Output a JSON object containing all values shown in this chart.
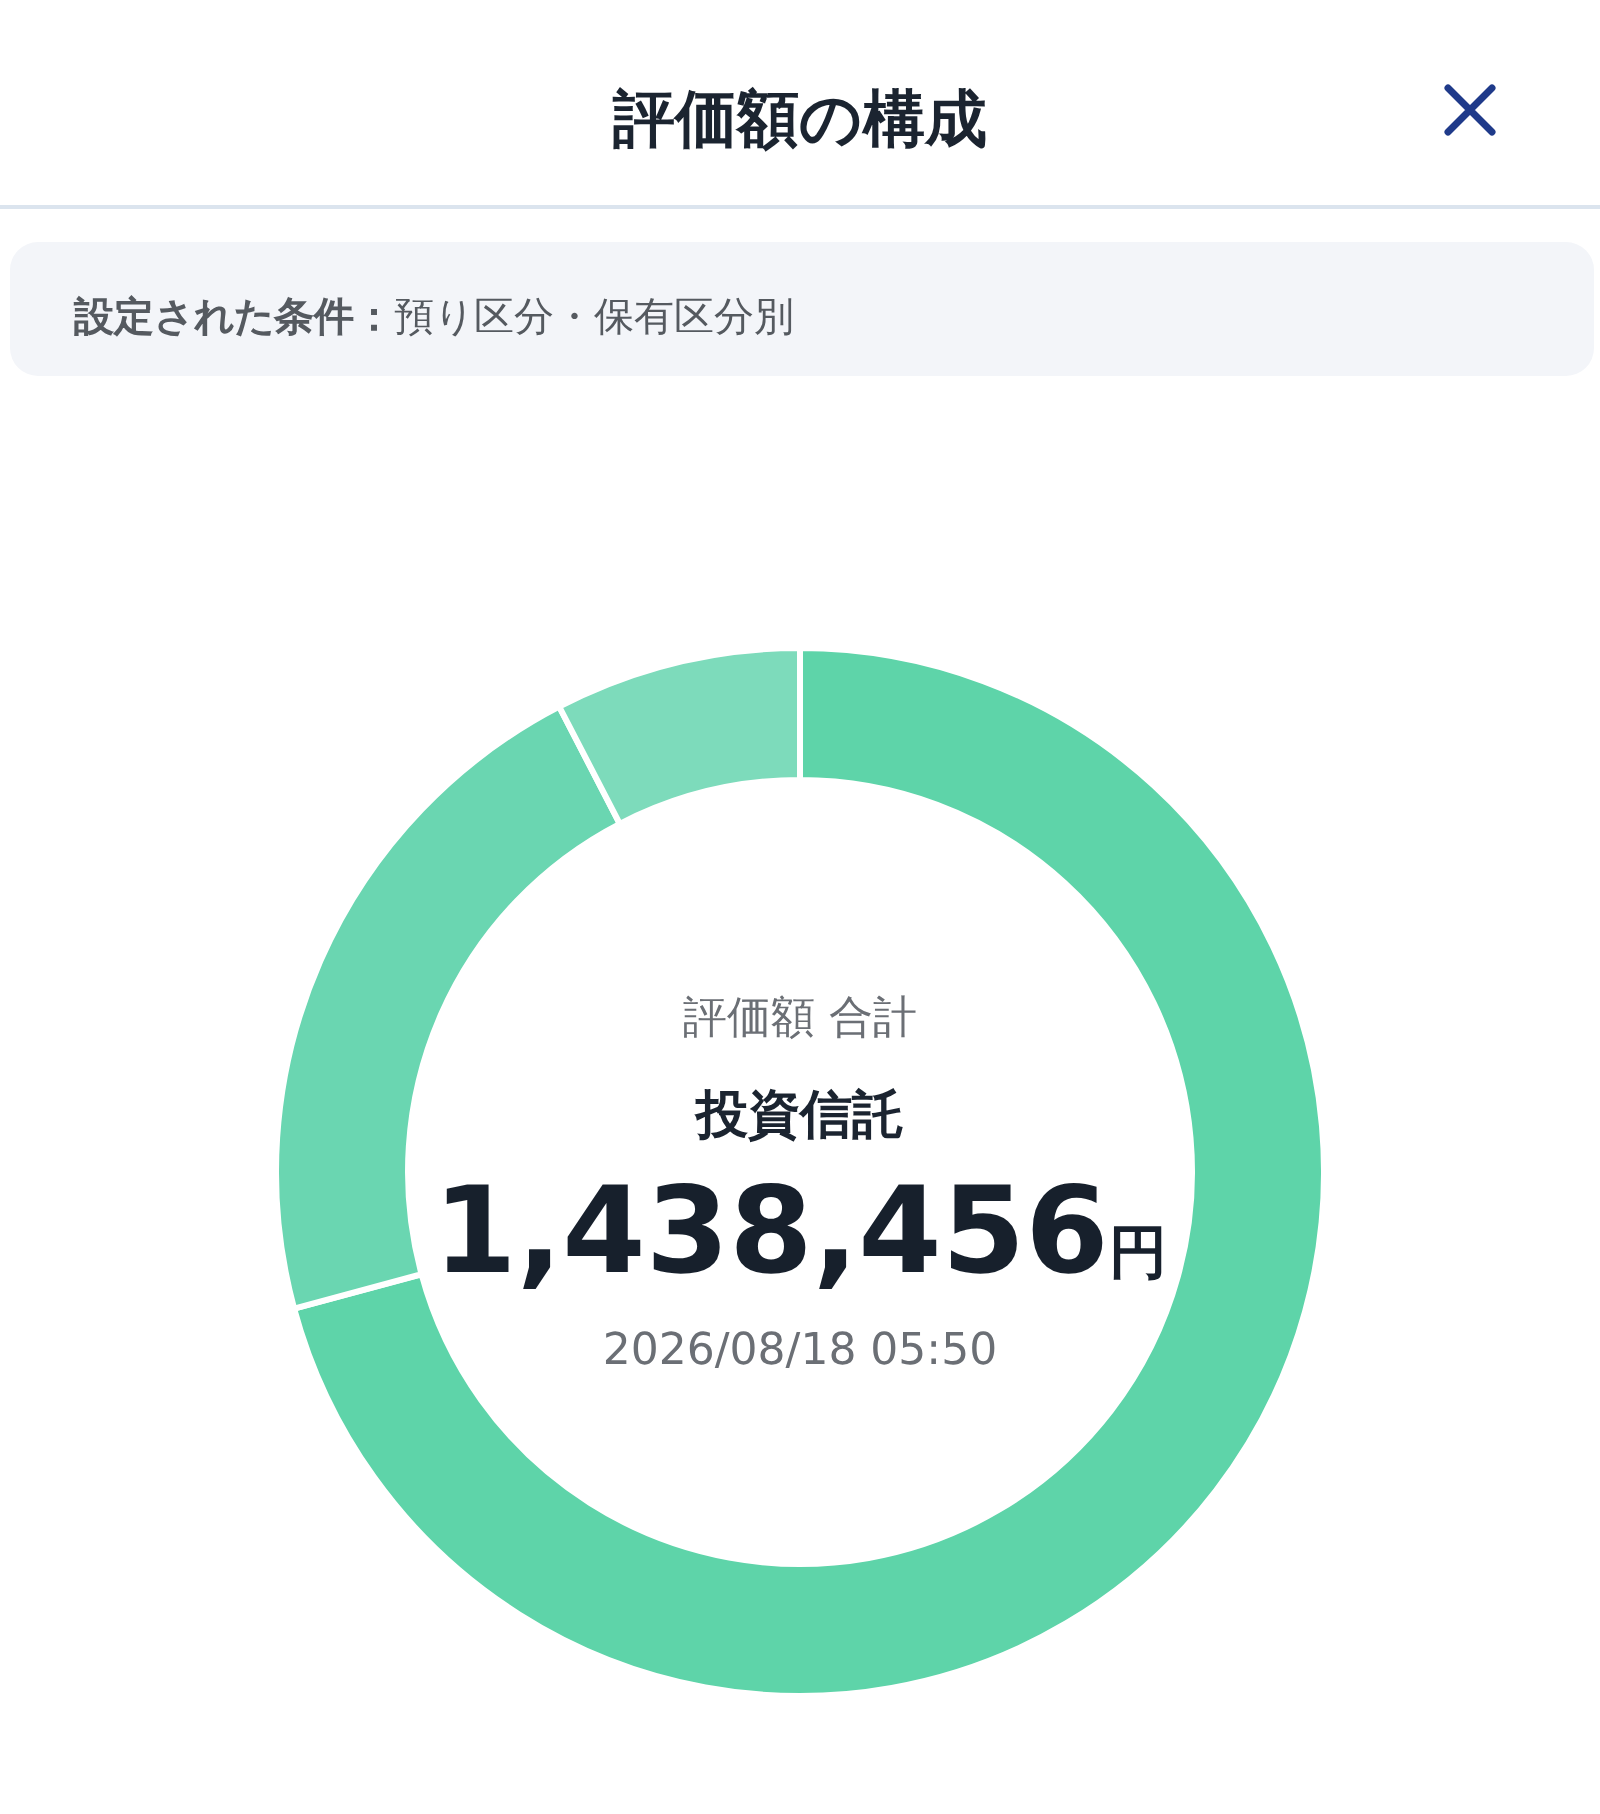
{
  "chart_data": {
    "type": "donut",
    "title": "評価額の構成",
    "subtitle": "設定された条件：預り区分・保有区分別",
    "categories": [
      null,
      null,
      null
    ],
    "values": [
      70.8,
      21.6,
      7.6
    ],
    "colors": [
      "#5ed4a9",
      "#6ad6b1",
      "#7ddbbb"
    ],
    "annotations": [
      "評価額 合計",
      "投資信託",
      "1,438,456円",
      "2026/08/18 05:50"
    ]
  }
}
